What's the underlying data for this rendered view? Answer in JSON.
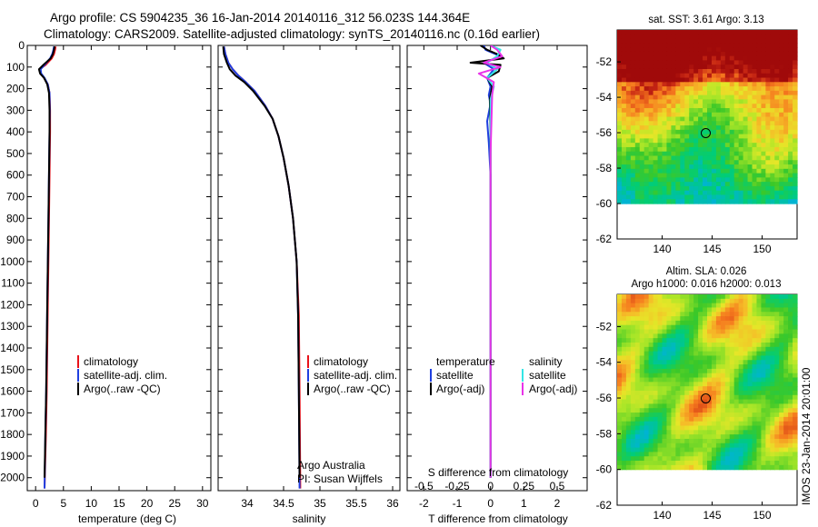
{
  "header": {
    "title_line1": "Argo profile: CS 5904235_36 16-Jan-2014 20140116_312 56.023S 144.364E",
    "title_line2": "Climatology: CARS2009. Satellite-adjusted climatology: synTS_20140116.nc (0.16d earlier)"
  },
  "colors": {
    "climatology": "#e8121a",
    "satellite_adj": "#1f3fe0",
    "argo": "#000000",
    "sal_satellite": "#33e6e6",
    "sal_argo": "#e833e8"
  },
  "chart_data": [
    {
      "type": "line",
      "name": "temperature-profile",
      "xlabel": "temperature (deg C)",
      "ylabel": "",
      "xlim": [
        -1.5,
        31.5
      ],
      "ylim": [
        2060,
        0
      ],
      "x_ticks": [
        0,
        5,
        10,
        15,
        20,
        25,
        30
      ],
      "y_ticks": [
        0,
        100,
        200,
        300,
        400,
        500,
        600,
        700,
        800,
        900,
        1000,
        1100,
        1200,
        1300,
        1400,
        1500,
        1600,
        1700,
        1800,
        1900,
        2000
      ],
      "legend": [
        "climatology",
        "satellite-adj. clim.",
        "Argo(..raw -QC)"
      ],
      "series": [
        {
          "name": "climatology",
          "x": [
            3.6,
            3.5,
            3.3,
            2.9,
            1.8,
            0.7,
            0.9,
            1.5,
            2.2,
            2.5,
            2.6,
            2.6,
            2.5,
            2.4,
            2.2,
            2.0,
            1.85,
            1.6
          ],
          "y": [
            5,
            20,
            40,
            60,
            90,
            110,
            130,
            150,
            180,
            220,
            300,
            400,
            600,
            800,
            1200,
            1600,
            1800,
            2050
          ]
        },
        {
          "name": "satellite-adj. clim.",
          "x": [
            3.3,
            3.2,
            3.0,
            2.6,
            1.6,
            0.9,
            1.0,
            1.6,
            2.2,
            2.5,
            2.55,
            2.5,
            2.4,
            2.3,
            2.1,
            1.9,
            1.75,
            1.6
          ],
          "y": [
            5,
            20,
            40,
            60,
            90,
            110,
            130,
            150,
            180,
            220,
            300,
            400,
            600,
            800,
            1200,
            1600,
            1800,
            2050
          ]
        },
        {
          "name": "Argo(..raw -QC)",
          "x": [
            3.4,
            3.3,
            3.1,
            2.7,
            1.4,
            0.6,
            0.8,
            1.5,
            2.1,
            2.4,
            2.5,
            2.5,
            2.4,
            2.3,
            2.1,
            1.9,
            1.75,
            1.6
          ],
          "y": [
            5,
            20,
            40,
            60,
            90,
            110,
            130,
            150,
            180,
            220,
            300,
            400,
            600,
            800,
            1200,
            1600,
            1800,
            2000
          ]
        }
      ]
    },
    {
      "type": "line",
      "name": "salinity-profile",
      "xlabel": "salinity",
      "xlim": [
        33.6,
        36.1
      ],
      "ylim": [
        2060,
        0
      ],
      "x_ticks": [
        34,
        34.5,
        35,
        35.5,
        36
      ],
      "legend": [
        "climatology",
        "satellite-adj. clim.",
        "Argo(..raw -QC)"
      ],
      "annotation": [
        "Argo Australia",
        "PI: Susan Wijffels"
      ],
      "series": [
        {
          "name": "climatology",
          "x": [
            33.68,
            33.7,
            33.74,
            33.8,
            33.88,
            33.98,
            34.1,
            34.25,
            34.35,
            34.43,
            34.5,
            34.57,
            34.63,
            34.68,
            34.71,
            34.72,
            34.73
          ],
          "y": [
            5,
            40,
            80,
            110,
            140,
            170,
            210,
            280,
            340,
            420,
            520,
            650,
            800,
            1000,
            1250,
            1600,
            2050
          ]
        },
        {
          "name": "satellite-adj. clim.",
          "x": [
            33.68,
            33.7,
            33.74,
            33.8,
            33.88,
            33.98,
            34.1,
            34.25,
            34.35,
            34.43,
            34.5,
            34.57,
            34.63,
            34.68,
            34.7,
            34.71,
            34.72
          ],
          "y": [
            5,
            40,
            80,
            110,
            140,
            170,
            210,
            280,
            340,
            420,
            520,
            650,
            800,
            1000,
            1250,
            1600,
            2050
          ]
        },
        {
          "name": "Argo(..raw -QC)",
          "x": [
            33.67,
            33.68,
            33.72,
            33.76,
            33.84,
            33.96,
            34.08,
            34.24,
            34.35,
            34.43,
            34.5,
            34.57,
            34.63,
            34.68,
            34.7,
            34.71,
            34.72
          ],
          "y": [
            5,
            40,
            80,
            110,
            140,
            170,
            210,
            280,
            340,
            420,
            520,
            650,
            800,
            1000,
            1250,
            1600,
            2000
          ]
        }
      ]
    },
    {
      "type": "line",
      "name": "difference-profile",
      "xlabel": "T difference from climatology",
      "xlabel2": "S difference from climatology",
      "xlim": [
        -2.5,
        2.9
      ],
      "ylim": [
        2060,
        0
      ],
      "x_ticks": [
        -2,
        -1,
        0,
        1,
        2
      ],
      "x2_ticks": [
        -0.5,
        -0.25,
        0,
        0.25,
        0.5
      ],
      "x2_tick_labels": [
        "-0.5",
        "-0.25",
        "0",
        "0.25",
        "0.5"
      ],
      "legend_temperature_title": "temperature",
      "legend_salinity_title": "salinity",
      "legend": [
        "satellite",
        "Argo(-adj)",
        "satellite",
        "Argo(-adj)"
      ],
      "series": [
        {
          "name": "satellite",
          "x": [
            -0.2,
            -0.15,
            0.3,
            -0.2,
            0.1,
            -0.1,
            0.0,
            -0.05,
            0.0,
            -0.1,
            -0.05,
            0.0,
            0.0,
            0.0,
            0.0
          ],
          "y": [
            0,
            20,
            50,
            80,
            110,
            150,
            190,
            230,
            270,
            350,
            450,
            600,
            900,
            1400,
            2000
          ]
        },
        {
          "name": "Argo(-adj)",
          "x": [
            -0.3,
            -0.1,
            0.2,
            0.4,
            -0.6,
            0.3,
            0.25,
            -0.1,
            0.05,
            -0.02,
            0.0,
            0.0
          ],
          "y": [
            0,
            20,
            40,
            60,
            80,
            90,
            120,
            150,
            190,
            250,
            400,
            2000
          ]
        },
        {
          "name": "satellite",
          "x": [
            0.0,
            0.3,
            0.2,
            -0.1,
            0.2,
            -0.1,
            0.1,
            0.0,
            0.0,
            0.0,
            0.0
          ],
          "y": [
            0,
            20,
            50,
            80,
            110,
            150,
            190,
            250,
            500,
            1200,
            2000
          ]
        },
        {
          "name": "Argo(-adj)",
          "x": [
            0.0,
            0.2,
            0.35,
            -0.2,
            0.3,
            -0.35,
            0.1,
            0.05,
            0.0,
            0.0
          ],
          "y": [
            0,
            20,
            50,
            80,
            100,
            130,
            170,
            230,
            500,
            2000
          ]
        }
      ]
    },
    {
      "type": "heatmap",
      "name": "sst-map",
      "title": "sat. SST: 3.61 Argo: 3.13",
      "xlim": [
        135.5,
        153.5
      ],
      "ylim": [
        -62,
        -50.2
      ],
      "x_ticks": [
        140,
        145,
        150
      ],
      "y_ticks": [
        -52,
        -54,
        -56,
        -58,
        -60,
        -62
      ],
      "marker": {
        "lon": 144.364,
        "lat": -56.023
      }
    },
    {
      "type": "heatmap",
      "name": "sla-map",
      "title": "Altim. SLA: 0.026",
      "subtitle": "Argo h1000: 0.016 h2000: 0.013",
      "xlim": [
        135.5,
        153.5
      ],
      "ylim": [
        -62,
        -50.2
      ],
      "x_ticks": [
        140,
        145,
        150
      ],
      "y_ticks": [
        -52,
        -54,
        -56,
        -58,
        -60,
        -62
      ],
      "marker": {
        "lon": 144.364,
        "lat": -56.023
      }
    }
  ],
  "footer": {
    "stamp": "IMOS 23-Jan-2014 20:01:00"
  }
}
